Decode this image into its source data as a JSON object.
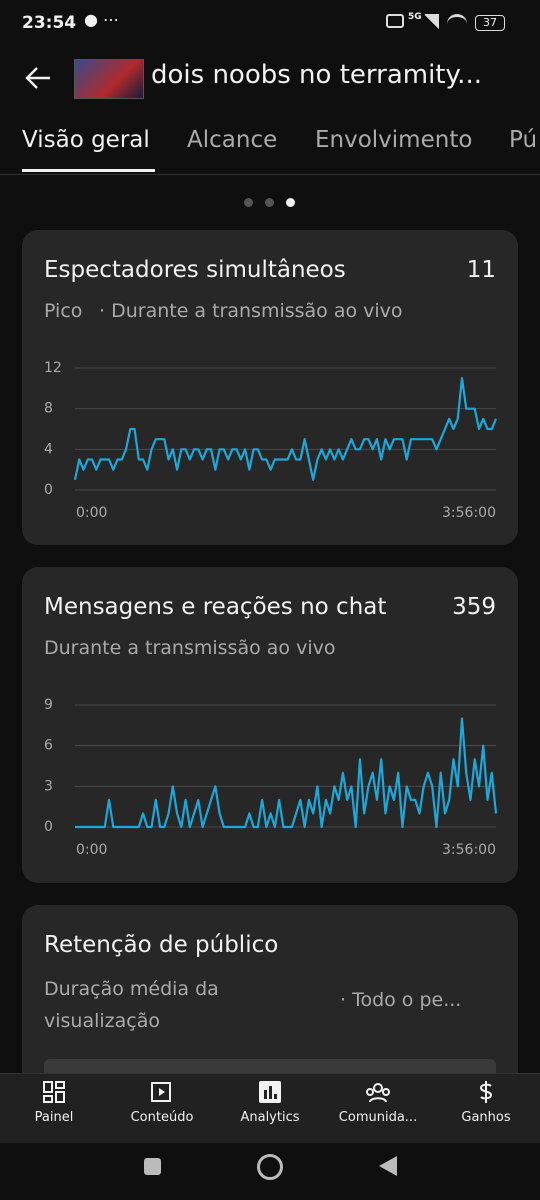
{
  "status": {
    "time": "23:54",
    "network": "5G",
    "battery": "37"
  },
  "header": {
    "title": "dois noobs no terramity..."
  },
  "tabs": [
    "Visão geral",
    "Alcance",
    "Envolvimento",
    "Pú"
  ],
  "cards": [
    {
      "title": "Espectadores simultâneos",
      "value": "11",
      "subtitle": "Pico",
      "subtitle_extra": "· Durante a transmissão ao vivo"
    },
    {
      "title": "Mensagens e reações no chat",
      "value": "359",
      "subtitle": "Durante a transmissão ao vivo"
    },
    {
      "title": "Retenção de público",
      "subtitle": "Duração média da visualização",
      "subtitle_extra": "· Todo o pe..."
    }
  ],
  "chart_data": [
    {
      "type": "line",
      "color": "#1ea7d8",
      "ylim": [
        0,
        12
      ],
      "yticks": [
        0,
        4,
        8,
        12
      ],
      "grid": true,
      "categories": [
        "0:00",
        null,
        null,
        null,
        null,
        null,
        null,
        null,
        null,
        null,
        null,
        null,
        null,
        null,
        null,
        null,
        null,
        null,
        null,
        null,
        null,
        null,
        null,
        null,
        null,
        null,
        null,
        null,
        null,
        null,
        null,
        null,
        null,
        null,
        null,
        null,
        null,
        null,
        null,
        null,
        null,
        null,
        null,
        null,
        null,
        null,
        null,
        null,
        null,
        null,
        null,
        null,
        null,
        null,
        null,
        null,
        null,
        null,
        null,
        null,
        null,
        null,
        null,
        null,
        null,
        null,
        null,
        null,
        null,
        null,
        null,
        null,
        null,
        null,
        null,
        null,
        null,
        null,
        null,
        null,
        null,
        null,
        null,
        null,
        null,
        null,
        null,
        null,
        null,
        null,
        null,
        null,
        null,
        null,
        null,
        null,
        null,
        null,
        null,
        "3:56:00"
      ],
      "values": [
        1,
        3,
        2,
        3,
        3,
        2,
        3,
        3,
        3,
        2,
        3,
        3,
        4,
        6,
        6,
        3,
        3,
        2,
        4,
        5,
        5,
        5,
        3,
        4,
        2,
        4,
        4,
        3,
        4,
        4,
        3,
        4,
        4,
        2,
        4,
        4,
        3,
        4,
        4,
        3,
        4,
        2,
        4,
        4,
        3,
        3,
        2,
        3,
        3,
        3,
        3,
        4,
        3,
        3,
        5,
        3,
        1,
        3,
        4,
        3,
        4,
        3,
        4,
        3,
        4,
        5,
        4,
        4,
        5,
        5,
        4,
        5,
        3,
        5,
        4,
        5,
        5,
        5,
        3,
        5,
        5,
        5,
        5,
        5,
        5,
        4,
        5,
        6,
        7,
        6,
        7,
        11,
        8,
        8,
        8,
        6,
        7,
        6,
        6,
        7
      ]
    },
    {
      "type": "line",
      "color": "#1ea7d8",
      "ylim": [
        0,
        9
      ],
      "yticks": [
        0,
        3,
        6,
        9
      ],
      "grid": true,
      "categories": [
        "0:00",
        null,
        null,
        null,
        null,
        null,
        null,
        null,
        null,
        null,
        null,
        null,
        null,
        null,
        null,
        null,
        null,
        null,
        null,
        null,
        null,
        null,
        null,
        null,
        null,
        null,
        null,
        null,
        null,
        null,
        null,
        null,
        null,
        null,
        null,
        null,
        null,
        null,
        null,
        null,
        null,
        null,
        null,
        null,
        null,
        null,
        null,
        null,
        null,
        null,
        null,
        null,
        null,
        null,
        null,
        null,
        null,
        null,
        null,
        null,
        null,
        null,
        null,
        null,
        null,
        null,
        null,
        null,
        null,
        null,
        null,
        null,
        null,
        null,
        null,
        null,
        null,
        null,
        null,
        null,
        null,
        null,
        null,
        null,
        null,
        null,
        null,
        null,
        null,
        null,
        null,
        null,
        null,
        null,
        null,
        null,
        null,
        null,
        null,
        "3:56:00"
      ],
      "values": [
        0,
        0,
        0,
        0,
        0,
        0,
        0,
        0,
        2,
        0,
        0,
        0,
        0,
        0,
        0,
        0,
        1,
        0,
        0,
        2,
        0,
        0,
        1,
        3,
        1,
        0,
        2,
        0,
        1,
        2,
        0,
        1,
        2,
        3,
        1,
        0,
        0,
        0,
        0,
        0,
        0,
        1,
        0,
        0,
        2,
        0,
        1,
        0,
        2,
        0,
        0,
        0,
        1,
        2,
        0,
        2,
        1,
        3,
        0,
        2,
        1,
        3,
        2,
        4,
        2,
        3,
        0,
        5,
        1,
        3,
        4,
        2,
        5,
        1,
        3,
        2,
        4,
        0,
        3,
        2,
        2,
        1,
        3,
        4,
        3,
        0,
        4,
        1,
        2,
        5,
        3,
        8,
        4,
        2,
        5,
        3,
        6,
        2,
        4,
        1
      ]
    }
  ],
  "nav": [
    "Painel",
    "Conteúdo",
    "Analytics",
    "Comunida...",
    "Ganhos"
  ]
}
